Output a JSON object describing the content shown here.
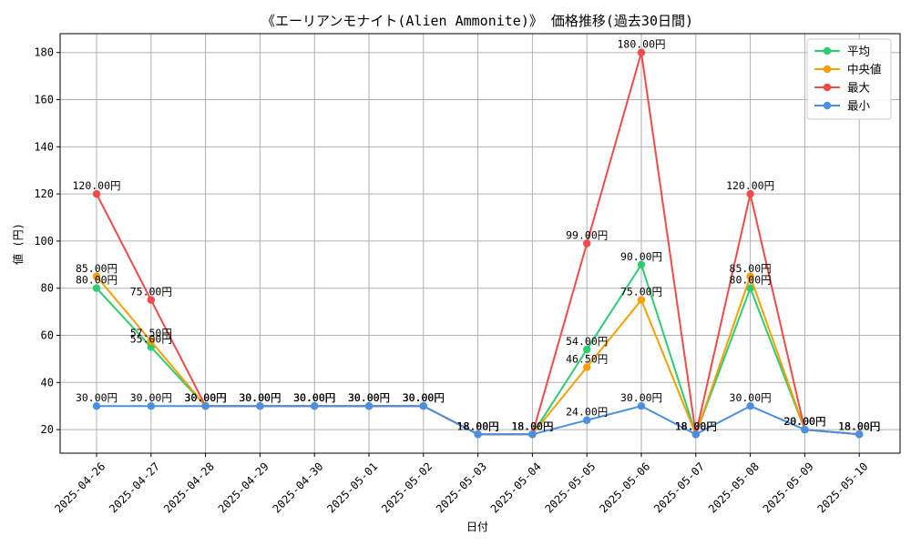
{
  "chart_data": {
    "type": "line",
    "title": "《エーリアンモナイト(Alien Ammonite)》 価格推移(過去30日間)",
    "xlabel": "日付",
    "ylabel": "値 (円)",
    "ylim": [
      10,
      188
    ],
    "yticks": [
      20,
      40,
      60,
      80,
      100,
      120,
      140,
      160,
      180
    ],
    "grid": true,
    "legend_position": "top-right",
    "label_suffix": "円",
    "categories": [
      "2025-04-26",
      "2025-04-27",
      "2025-04-28",
      "2025-04-29",
      "2025-04-30",
      "2025-05-01",
      "2025-05-02",
      "2025-05-03",
      "2025-05-04",
      "2025-05-05",
      "2025-05-06",
      "2025-05-07",
      "2025-05-08",
      "2025-05-09",
      "2025-05-10"
    ],
    "series": [
      {
        "name": "平均",
        "color": "#2ecc71",
        "values": [
          80,
          55,
          30,
          30,
          30,
          30,
          30,
          18,
          18,
          54,
          90,
          18,
          80,
          20,
          18
        ]
      },
      {
        "name": "中央値",
        "color": "#f5a000",
        "values": [
          85,
          57.5,
          30,
          30,
          30,
          30,
          30,
          18,
          18,
          46.5,
          75,
          18,
          85,
          20,
          18
        ]
      },
      {
        "name": "最大",
        "color": "#ef4b4b",
        "values": [
          120,
          75,
          30,
          30,
          30,
          30,
          30,
          18,
          18,
          99,
          180,
          18,
          120,
          20,
          18
        ]
      },
      {
        "name": "最小",
        "color": "#4a90e2",
        "values": [
          30,
          30,
          30,
          30,
          30,
          30,
          30,
          18,
          18,
          24,
          30,
          18,
          30,
          20,
          18
        ]
      }
    ]
  }
}
